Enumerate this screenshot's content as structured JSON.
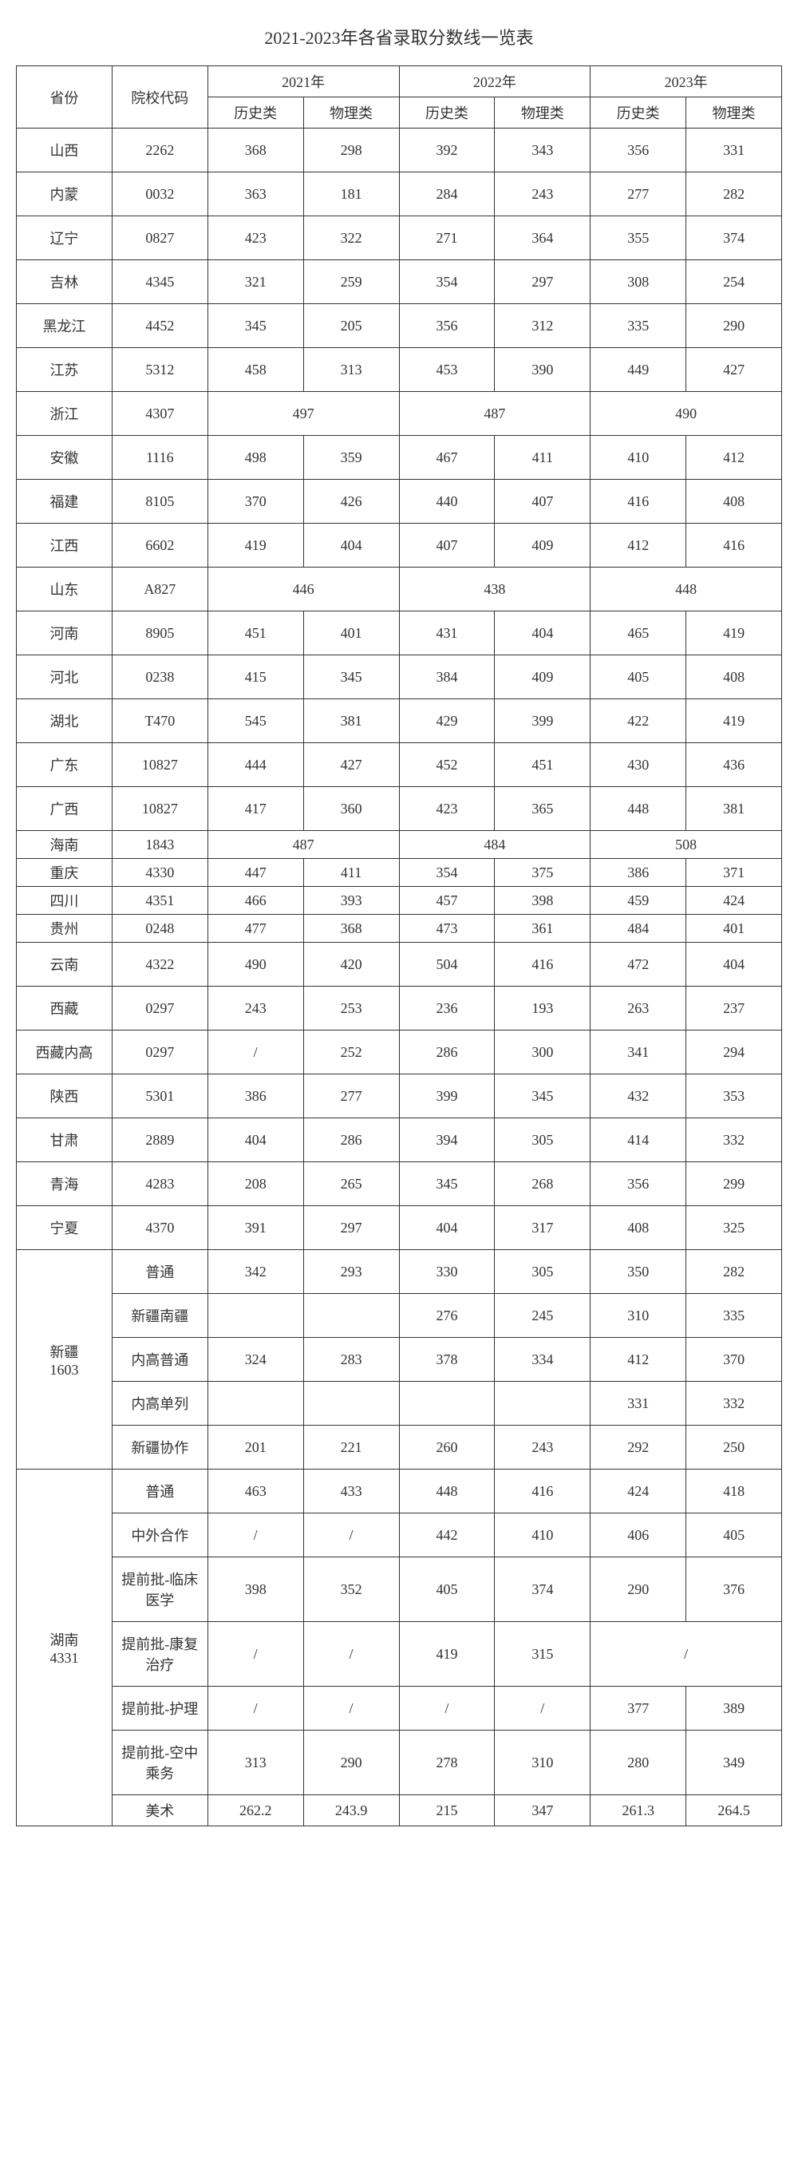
{
  "title": "2021-2023年各省录取分数线一览表",
  "headers": {
    "province": "省份",
    "code": "院校代码",
    "year2021": "2021年",
    "year2022": "2022年",
    "year2023": "2023年",
    "history": "历史类",
    "physics": "物理类"
  },
  "rows": [
    {
      "province": "山西",
      "code": "2262",
      "y21h": "368",
      "y21p": "298",
      "y22h": "392",
      "y22p": "343",
      "y23h": "356",
      "y23p": "331"
    },
    {
      "province": "内蒙",
      "code": "0032",
      "y21h": "363",
      "y21p": "181",
      "y22h": "284",
      "y22p": "243",
      "y23h": "277",
      "y23p": "282"
    },
    {
      "province": "辽宁",
      "code": "0827",
      "y21h": "423",
      "y21p": "322",
      "y22h": "271",
      "y22p": "364",
      "y23h": "355",
      "y23p": "374"
    },
    {
      "province": "吉林",
      "code": "4345",
      "y21h": "321",
      "y21p": "259",
      "y22h": "354",
      "y22p": "297",
      "y23h": "308",
      "y23p": "254"
    },
    {
      "province": "黑龙江",
      "code": "4452",
      "y21h": "345",
      "y21p": "205",
      "y22h": "356",
      "y22p": "312",
      "y23h": "335",
      "y23p": "290"
    },
    {
      "province": "江苏",
      "code": "5312",
      "y21h": "458",
      "y21p": "313",
      "y22h": "453",
      "y22p": "390",
      "y23h": "449",
      "y23p": "427"
    }
  ],
  "zhejiang": {
    "province": "浙江",
    "code": "4307",
    "y21": "497",
    "y22": "487",
    "y23": "490"
  },
  "rows2": [
    {
      "province": "安徽",
      "code": "1116",
      "y21h": "498",
      "y21p": "359",
      "y22h": "467",
      "y22p": "411",
      "y23h": "410",
      "y23p": "412"
    },
    {
      "province": "福建",
      "code": "8105",
      "y21h": "370",
      "y21p": "426",
      "y22h": "440",
      "y22p": "407",
      "y23h": "416",
      "y23p": "408"
    },
    {
      "province": "江西",
      "code": "6602",
      "y21h": "419",
      "y21p": "404",
      "y22h": "407",
      "y22p": "409",
      "y23h": "412",
      "y23p": "416"
    }
  ],
  "shandong": {
    "province": "山东",
    "code": "A827",
    "y21": "446",
    "y22": "438",
    "y23": "448"
  },
  "rows3": [
    {
      "province": "河南",
      "code": "8905",
      "y21h": "451",
      "y21p": "401",
      "y22h": "431",
      "y22p": "404",
      "y23h": "465",
      "y23p": "419"
    },
    {
      "province": "河北",
      "code": "0238",
      "y21h": "415",
      "y21p": "345",
      "y22h": "384",
      "y22p": "409",
      "y23h": "405",
      "y23p": "408"
    },
    {
      "province": "湖北",
      "code": "T470",
      "y21h": "545",
      "y21p": "381",
      "y22h": "429",
      "y22p": "399",
      "y23h": "422",
      "y23p": "419"
    },
    {
      "province": "广东",
      "code": "10827",
      "y21h": "444",
      "y21p": "427",
      "y22h": "452",
      "y22p": "451",
      "y23h": "430",
      "y23p": "436"
    },
    {
      "province": "广西",
      "code": "10827",
      "y21h": "417",
      "y21p": "360",
      "y22h": "423",
      "y22p": "365",
      "y23h": "448",
      "y23p": "381"
    }
  ],
  "hainan": {
    "province": "海南",
    "code": "1843",
    "y21": "487",
    "y22": "484",
    "y23": "508"
  },
  "rows4": [
    {
      "province": "重庆",
      "code": "4330",
      "y21h": "447",
      "y21p": "411",
      "y22h": "354",
      "y22p": "375",
      "y23h": "386",
      "y23p": "371"
    },
    {
      "province": "四川",
      "code": "4351",
      "y21h": "466",
      "y21p": "393",
      "y22h": "457",
      "y22p": "398",
      "y23h": "459",
      "y23p": "424"
    },
    {
      "province": "贵州",
      "code": "0248",
      "y21h": "477",
      "y21p": "368",
      "y22h": "473",
      "y22p": "361",
      "y23h": "484",
      "y23p": "401"
    }
  ],
  "rows5": [
    {
      "province": "云南",
      "code": "4322",
      "y21h": "490",
      "y21p": "420",
      "y22h": "504",
      "y22p": "416",
      "y23h": "472",
      "y23p": "404"
    },
    {
      "province": "西藏",
      "code": "0297",
      "y21h": "243",
      "y21p": "253",
      "y22h": "236",
      "y22p": "193",
      "y23h": "263",
      "y23p": "237"
    },
    {
      "province": "西藏内高",
      "code": "0297",
      "y21h": "/",
      "y21p": "252",
      "y22h": "286",
      "y22p": "300",
      "y23h": "341",
      "y23p": "294"
    },
    {
      "province": "陕西",
      "code": "5301",
      "y21h": "386",
      "y21p": "277",
      "y22h": "399",
      "y22p": "345",
      "y23h": "432",
      "y23p": "353"
    },
    {
      "province": "甘肃",
      "code": "2889",
      "y21h": "404",
      "y21p": "286",
      "y22h": "394",
      "y22p": "305",
      "y23h": "414",
      "y23p": "332"
    },
    {
      "province": "青海",
      "code": "4283",
      "y21h": "208",
      "y21p": "265",
      "y22h": "345",
      "y22p": "268",
      "y23h": "356",
      "y23p": "299"
    },
    {
      "province": "宁夏",
      "code": "4370",
      "y21h": "391",
      "y21p": "297",
      "y22h": "404",
      "y22p": "317",
      "y23h": "408",
      "y23p": "325"
    }
  ],
  "xinjiang": {
    "label1": "新疆",
    "label2": "1603",
    "rows": [
      {
        "type": "普通",
        "y21h": "342",
        "y21p": "293",
        "y22h": "330",
        "y22p": "305",
        "y23h": "350",
        "y23p": "282"
      },
      {
        "type": "新疆南疆",
        "y21h": "",
        "y21p": "",
        "y22h": "276",
        "y22p": "245",
        "y23h": "310",
        "y23p": "335"
      },
      {
        "type": "内高普通",
        "y21h": "324",
        "y21p": "283",
        "y22h": "378",
        "y22p": "334",
        "y23h": "412",
        "y23p": "370"
      },
      {
        "type": "内高单列",
        "y21h": "",
        "y21p": "",
        "y22h": "",
        "y22p": "",
        "y23h": "331",
        "y23p": "332"
      },
      {
        "type": "新疆协作",
        "y21h": "201",
        "y21p": "221",
        "y22h": "260",
        "y22p": "243",
        "y23h": "292",
        "y23p": "250"
      }
    ]
  },
  "hunan": {
    "label1": "湖南",
    "label2": "4331",
    "r1": {
      "type": "普通",
      "y21h": "463",
      "y21p": "433",
      "y22h": "448",
      "y22p": "416",
      "y23h": "424",
      "y23p": "418"
    },
    "r2": {
      "type": "中外合作",
      "y21h": "/",
      "y21p": "/",
      "y22h": "442",
      "y22p": "410",
      "y23h": "406",
      "y23p": "405"
    },
    "r3": {
      "type": "提前批-临床医学",
      "y21h": "398",
      "y21p": "352",
      "y22h": "405",
      "y22p": "374",
      "y23h": "290",
      "y23p": "376"
    },
    "r4": {
      "type": "提前批-康复治疗",
      "y21h": "/",
      "y21p": "/",
      "y22h": "419",
      "y22p": "315",
      "y23": "/"
    },
    "r5": {
      "type": "提前批-护理",
      "y21h": "/",
      "y21p": "/",
      "y22h": "/",
      "y22p": "/",
      "y23h": "377",
      "y23p": "389"
    },
    "r6": {
      "type": "提前批-空中乘务",
      "y21h": "313",
      "y21p": "290",
      "y22h": "278",
      "y22p": "310",
      "y23h": "280",
      "y23p": "349"
    },
    "r7": {
      "type": "美术",
      "y21h": "262.2",
      "y21p": "243.9",
      "y22h": "215",
      "y22p": "347",
      "y23h": "261.3",
      "y23p": "264.5"
    }
  }
}
